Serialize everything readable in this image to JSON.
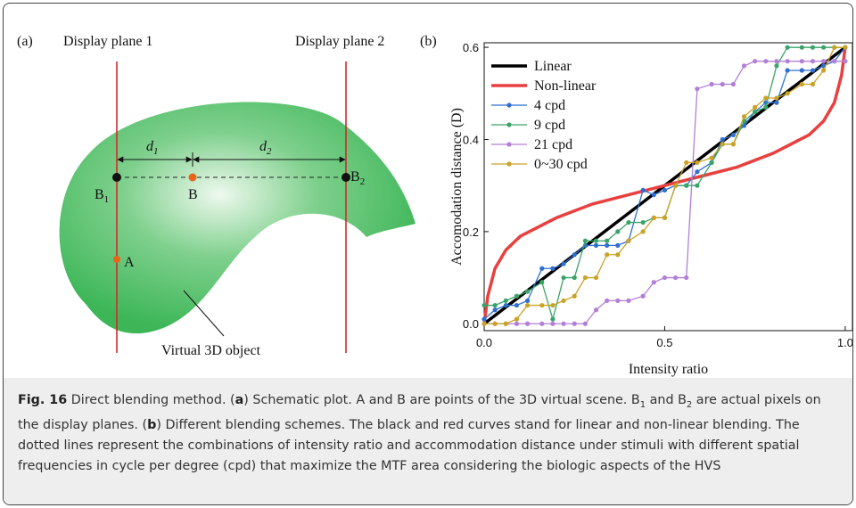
{
  "panel_a": {
    "label": "(a)",
    "plane_1": "Display plane 1",
    "plane_2": "Display plane 2",
    "d1": {
      "main": "d",
      "sub": "1"
    },
    "d2": {
      "main": "d",
      "sub": "2"
    },
    "b1": {
      "main": "B",
      "sub": "1"
    },
    "b": "B",
    "b2": {
      "main": "B",
      "sub": "2"
    },
    "a": "A",
    "object": "Virtual 3D object"
  },
  "chart_data": {
    "type": "line",
    "panel_label": "(b)",
    "x_label": "Intensity ratio",
    "y_label": "Accomodation distance (D)",
    "xlim": [
      0,
      1.02
    ],
    "ylim": [
      -0.015,
      0.61
    ],
    "xticks": [
      {
        "value": 0,
        "label": "0.0"
      },
      {
        "value": 0.5,
        "label": "0.5"
      },
      {
        "value": 1,
        "label": "1.0"
      }
    ],
    "yticks": [
      {
        "value": 0,
        "label": "0.0"
      },
      {
        "value": 0.2,
        "label": "0.2"
      },
      {
        "value": 0.4,
        "label": "0.4"
      },
      {
        "value": 0.6,
        "label": "0.6"
      }
    ],
    "legend": "upper-left",
    "series": [
      {
        "name": "Linear",
        "color": "#000000",
        "markers": false,
        "x": [
          0,
          1
        ],
        "values": [
          0,
          0.6
        ]
      },
      {
        "name": "Non-linear",
        "color": "#e8403f",
        "markers": false,
        "x": [
          0,
          0.01,
          0.03,
          0.06,
          0.1,
          0.2,
          0.3,
          0.4,
          0.5,
          0.6,
          0.7,
          0.8,
          0.9,
          0.94,
          0.97,
          0.99,
          1.0
        ],
        "values": [
          0,
          0.06,
          0.12,
          0.16,
          0.19,
          0.23,
          0.26,
          0.28,
          0.3,
          0.32,
          0.34,
          0.37,
          0.41,
          0.44,
          0.48,
          0.54,
          0.6
        ]
      },
      {
        "name": "4 cpd",
        "color": "#2f6fd0",
        "markers": true,
        "x": [
          0,
          0.03,
          0.06,
          0.09,
          0.12,
          0.16,
          0.19,
          0.22,
          0.25,
          0.28,
          0.31,
          0.34,
          0.37,
          0.4,
          0.44,
          0.47,
          0.5,
          0.53,
          0.56,
          0.59,
          0.63,
          0.66,
          0.69,
          0.72,
          0.75,
          0.78,
          0.81,
          0.84,
          0.88,
          0.91,
          0.94,
          0.97,
          1.0
        ],
        "values": [
          0.01,
          0.03,
          0.04,
          0.04,
          0.05,
          0.12,
          0.12,
          0.13,
          0.15,
          0.17,
          0.17,
          0.17,
          0.17,
          0.18,
          0.29,
          0.28,
          0.29,
          0.3,
          0.3,
          0.33,
          0.35,
          0.4,
          0.41,
          0.43,
          0.46,
          0.48,
          0.48,
          0.55,
          0.55,
          0.55,
          0.56,
          0.57,
          0.6
        ]
      },
      {
        "name": "9 cpd",
        "color": "#3aa36a",
        "markers": true,
        "x": [
          0,
          0.03,
          0.06,
          0.09,
          0.12,
          0.16,
          0.19,
          0.22,
          0.25,
          0.28,
          0.31,
          0.34,
          0.37,
          0.4,
          0.44,
          0.47,
          0.5,
          0.53,
          0.56,
          0.59,
          0.63,
          0.66,
          0.69,
          0.72,
          0.75,
          0.78,
          0.81,
          0.84,
          0.88,
          0.91,
          0.94,
          0.97,
          1.0
        ],
        "values": [
          0.04,
          0.04,
          0.05,
          0.06,
          0.07,
          0.09,
          0.01,
          0.1,
          0.1,
          0.18,
          0.18,
          0.18,
          0.2,
          0.22,
          0.22,
          0.23,
          0.23,
          0.3,
          0.3,
          0.3,
          0.35,
          0.39,
          0.39,
          0.44,
          0.46,
          0.47,
          0.56,
          0.6,
          0.6,
          0.6,
          0.6,
          0.6,
          0.6
        ]
      },
      {
        "name": "21 cpd",
        "color": "#b27fd8",
        "markers": true,
        "x": [
          0,
          0.03,
          0.06,
          0.09,
          0.12,
          0.16,
          0.19,
          0.22,
          0.25,
          0.28,
          0.31,
          0.34,
          0.37,
          0.4,
          0.44,
          0.47,
          0.5,
          0.53,
          0.56,
          0.59,
          0.63,
          0.66,
          0.69,
          0.72,
          0.75,
          0.78,
          0.81,
          0.84,
          0.88,
          0.91,
          0.94,
          0.97,
          1.0
        ],
        "values": [
          0,
          0,
          0,
          0,
          0,
          0,
          0,
          0,
          0,
          0,
          0.03,
          0.05,
          0.05,
          0.05,
          0.06,
          0.09,
          0.1,
          0.1,
          0.1,
          0.51,
          0.52,
          0.52,
          0.52,
          0.56,
          0.57,
          0.57,
          0.57,
          0.57,
          0.57,
          0.57,
          0.57,
          0.57,
          0.57
        ]
      },
      {
        "name": "0~30 cpd",
        "color": "#c9a227",
        "markers": true,
        "x": [
          0,
          0.03,
          0.06,
          0.09,
          0.12,
          0.16,
          0.19,
          0.22,
          0.25,
          0.28,
          0.31,
          0.34,
          0.37,
          0.4,
          0.44,
          0.47,
          0.5,
          0.53,
          0.56,
          0.59,
          0.63,
          0.66,
          0.69,
          0.72,
          0.75,
          0.78,
          0.81,
          0.84,
          0.88,
          0.91,
          0.94,
          0.97,
          1.0
        ],
        "values": [
          0,
          0,
          0,
          0.01,
          0.04,
          0.04,
          0.04,
          0.05,
          0.06,
          0.1,
          0.1,
          0.15,
          0.15,
          0.18,
          0.2,
          0.23,
          0.23,
          0.3,
          0.35,
          0.35,
          0.36,
          0.39,
          0.39,
          0.45,
          0.47,
          0.49,
          0.49,
          0.5,
          0.52,
          0.52,
          0.55,
          0.6,
          0.6
        ]
      }
    ]
  },
  "caption": {
    "runs": [
      {
        "text": "Fig. 16",
        "style": "bold"
      },
      {
        "text": " Direct blending method. (",
        "style": "normal"
      },
      {
        "text": "a",
        "style": "bold"
      },
      {
        "text": ") Schematic plot. A and B are points of the 3D virtual scene. B",
        "style": "normal"
      },
      {
        "text": "1",
        "style": "sub"
      },
      {
        "text": " and B",
        "style": "normal"
      },
      {
        "text": "2",
        "style": "sub"
      },
      {
        "text": " are actual pixels on the display planes. (",
        "style": "normal"
      },
      {
        "text": "b",
        "style": "bold"
      },
      {
        "text": ") Different blending schemes. The black and red curves stand for linear and non-linear blending. The dotted lines represent the combinations of intensity ratio and accommodation distance under stimuli with different spatial frequencies in cycle per degree (cpd) that maximize the MTF area considering the biologic aspects of the HVS",
        "style": "normal"
      }
    ]
  }
}
